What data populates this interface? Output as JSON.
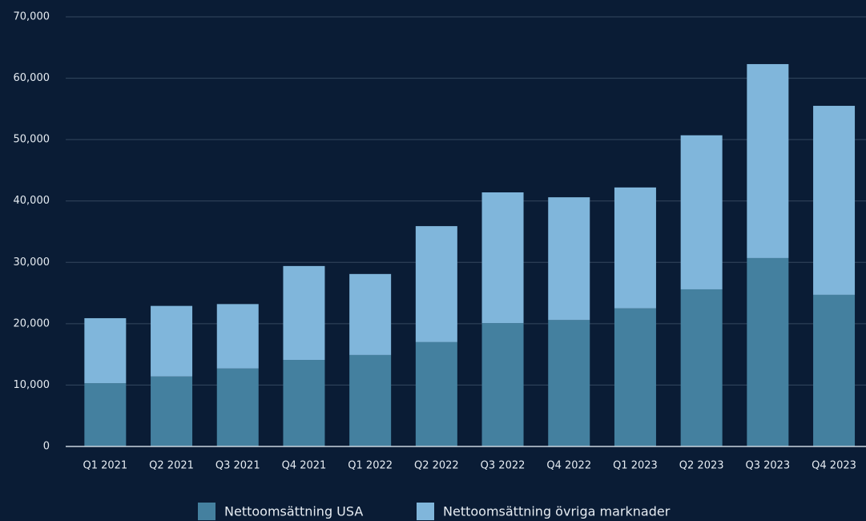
{
  "chart_data": {
    "type": "stacked_bar",
    "categories": [
      "Q1 2021",
      "Q2 2021",
      "Q3 2021",
      "Q4 2021",
      "Q1 2022",
      "Q2 2022",
      "Q3 2022",
      "Q4 2022",
      "Q1 2023",
      "Q2 2023",
      "Q3 2023",
      "Q4 2023"
    ],
    "series": [
      {
        "name": "Nettoomsättning USA",
        "color": "#44809f",
        "values": [
          10300,
          11400,
          12700,
          14100,
          14900,
          17000,
          20100,
          20600,
          22500,
          25600,
          30700,
          24700
        ]
      },
      {
        "name": "Nettoomsättning övriga marknader",
        "color": "#80b6db",
        "values": [
          10600,
          11500,
          10500,
          15300,
          13200,
          18900,
          21300,
          20000,
          19700,
          25100,
          31600,
          30800
        ]
      }
    ],
    "ylim": [
      0,
      70000
    ],
    "yticks": [
      0,
      {
        "value": 10000,
        "label": "10,000"
      },
      {
        "value": 20000,
        "label": "20,000"
      },
      {
        "value": 30000,
        "label": "30,000"
      },
      {
        "value": 40000,
        "label": "40,000"
      },
      {
        "value": 50000,
        "label": "50,000"
      },
      {
        "value": 60000,
        "label": "60,000"
      },
      {
        "value": 70000,
        "label": "70,000"
      }
    ],
    "grid": true,
    "legend": "bottom"
  }
}
